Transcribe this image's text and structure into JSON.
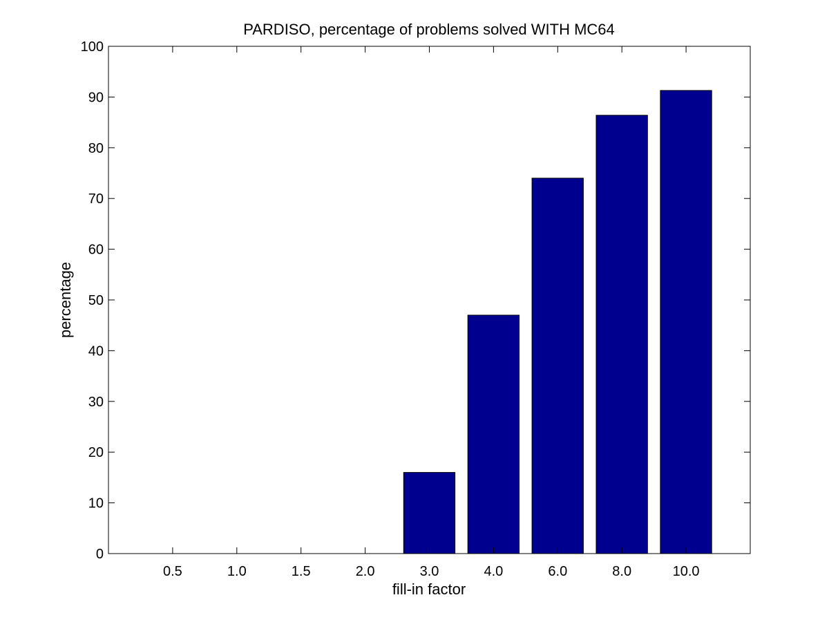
{
  "chart_data": {
    "type": "bar",
    "title": "PARDISO, percentage of problems solved WITH MC64",
    "xlabel": "fill-in factor",
    "ylabel": "percentage",
    "categories": [
      "0.5",
      "1.0",
      "1.5",
      "2.0",
      "3.0",
      "4.0",
      "6.0",
      "8.0",
      "10.0"
    ],
    "values": [
      0,
      0,
      0,
      0,
      16,
      47,
      74,
      86.4,
      91.3
    ],
    "ylim": [
      0,
      100
    ],
    "yticks": [
      0,
      10,
      20,
      30,
      40,
      50,
      60,
      70,
      80,
      90,
      100
    ],
    "grid": false,
    "legend": "none",
    "colors": {
      "bar_fill": "#00008f",
      "bar_edge": "#000000",
      "axes": "#000000",
      "background": "#ffffff"
    }
  }
}
